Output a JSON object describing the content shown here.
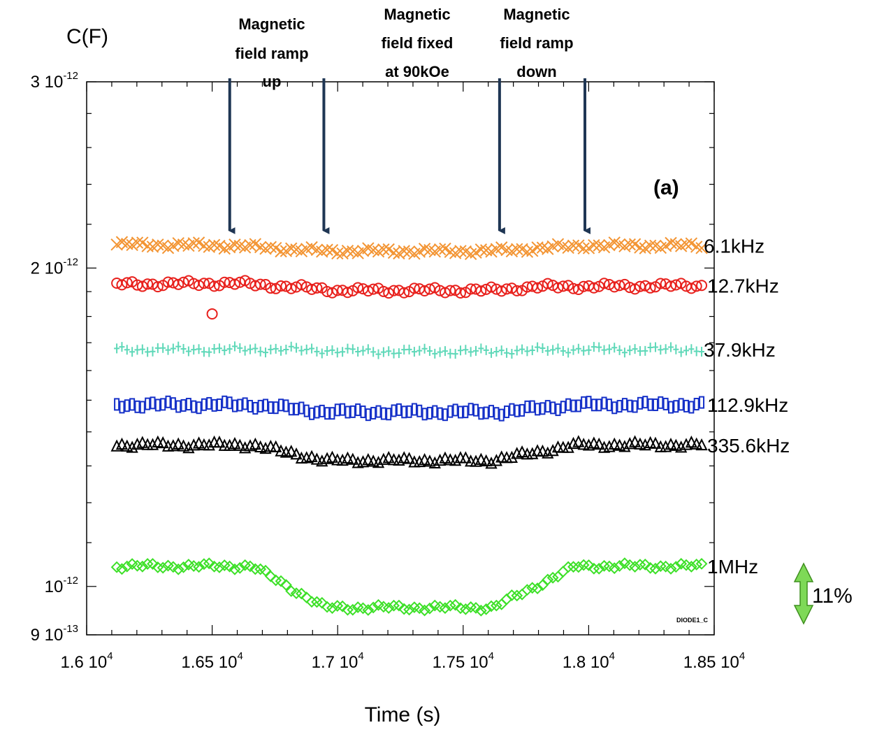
{
  "chart_data": {
    "type": "scatter",
    "ylabel": "C(F)",
    "xlabel": "Time (s)",
    "panel_label": "(a)",
    "watermark": "DIODE1_C",
    "y_scale": "log",
    "xlim": [
      16000,
      18500
    ],
    "ylim": [
      9e-13,
      3e-12
    ],
    "x_ticks": [
      {
        "mant": "1.6",
        "exp": "4",
        "value": 16000
      },
      {
        "mant": "1.65",
        "exp": "4",
        "value": 16500
      },
      {
        "mant": "1.7",
        "exp": "4",
        "value": 17000
      },
      {
        "mant": "1.75",
        "exp": "4",
        "value": 17500
      },
      {
        "mant": "1.8",
        "exp": "4",
        "value": 18000
      },
      {
        "mant": "1.85",
        "exp": "4",
        "value": 18500
      }
    ],
    "y_ticks": [
      {
        "mant": "3",
        "exp": "-12",
        "value": 3e-12
      },
      {
        "mant": "2",
        "exp": "-12",
        "value": 2e-12
      },
      {
        "mant": "",
        "exp": "-12",
        "value": 1e-12
      },
      {
        "mant": "9",
        "exp": "-13",
        "value": 9e-13
      }
    ],
    "annotations": [
      {
        "lines": [
          "Magnetic",
          "field ramp",
          "up"
        ],
        "arrows_x": [
          16570,
          16945
        ]
      },
      {
        "lines": [
          "Magnetic",
          "field fixed",
          "at 90kOe"
        ],
        "arrows_x": []
      },
      {
        "lines": [
          "Magnetic",
          "field ramp",
          "down"
        ],
        "arrows_x": [
          17645,
          17985
        ]
      }
    ],
    "scale_bar_label": "11%",
    "series": [
      {
        "name": "6.1kHz",
        "color": "#f39534",
        "marker": "x",
        "profile": [
          [
            16120,
            2.105e-12
          ],
          [
            16570,
            2.1e-12
          ],
          [
            16950,
            2.075e-12
          ],
          [
            17600,
            2.075e-12
          ],
          [
            18000,
            2.1e-12
          ],
          [
            18450,
            2.1e-12
          ]
        ]
      },
      {
        "name": "12.7kHz",
        "color": "#e8201c",
        "marker": "o",
        "profile": [
          [
            16120,
            1.93e-12
          ],
          [
            16600,
            1.935e-12
          ],
          [
            17000,
            1.905e-12
          ],
          [
            17600,
            1.905e-12
          ],
          [
            17800,
            1.92e-12
          ],
          [
            18450,
            1.925e-12
          ]
        ],
        "outlier": [
          16500,
          1.81e-12
        ]
      },
      {
        "name": "37.9kHz",
        "color": "#5ed8b8",
        "marker": "+",
        "profile": [
          [
            16120,
            1.675e-12
          ],
          [
            16800,
            1.675e-12
          ],
          [
            17100,
            1.668e-12
          ],
          [
            17600,
            1.668e-12
          ],
          [
            17900,
            1.675e-12
          ],
          [
            18450,
            1.675e-12
          ]
        ]
      },
      {
        "name": "112.9kHz",
        "color": "#1530c8",
        "marker": "box",
        "profile": [
          [
            16120,
            1.485e-12
          ],
          [
            16660,
            1.485e-12
          ],
          [
            16950,
            1.462e-12
          ],
          [
            17650,
            1.462e-12
          ],
          [
            17950,
            1.485e-12
          ],
          [
            18450,
            1.485e-12
          ]
        ]
      },
      {
        "name": "335.6kHz",
        "color": "#000000",
        "marker": "^",
        "profile": [
          [
            16120,
            1.36e-12
          ],
          [
            16660,
            1.36e-12
          ],
          [
            16950,
            1.315e-12
          ],
          [
            17620,
            1.315e-12
          ],
          [
            17950,
            1.36e-12
          ],
          [
            18450,
            1.36e-12
          ]
        ]
      },
      {
        "name": "1MHz",
        "color": "#3de028",
        "marker": "d",
        "profile": [
          [
            16120,
            1.045e-12
          ],
          [
            16660,
            1.045e-12
          ],
          [
            16950,
            9.55e-13
          ],
          [
            17620,
            9.55e-13
          ],
          [
            17950,
            1.045e-12
          ],
          [
            18450,
            1.045e-12
          ]
        ]
      }
    ]
  }
}
